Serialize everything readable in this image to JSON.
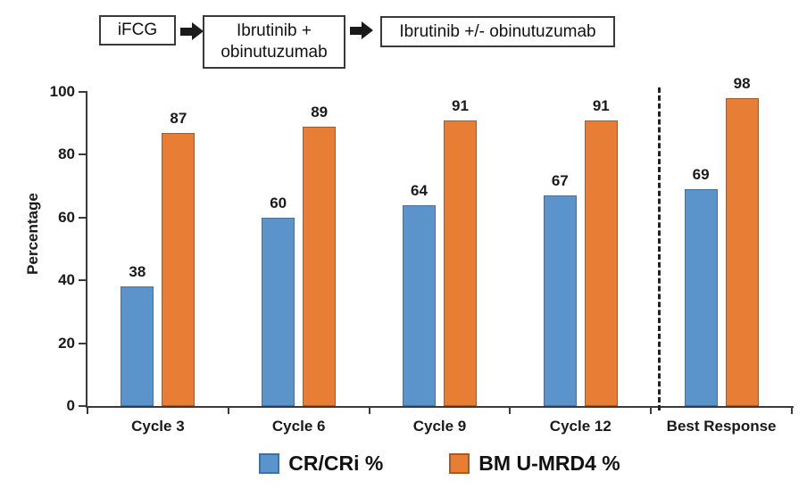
{
  "flow": {
    "steps": [
      {
        "label": "iFCG"
      },
      {
        "label": "Ibrutinib +\nobinutuzumab"
      },
      {
        "label": "Ibrutinib +/- obinutuzumab"
      }
    ],
    "arrow_color": "#1a1a1a"
  },
  "chart_data": {
    "type": "bar",
    "categories": [
      "Cycle 3",
      "Cycle 6",
      "Cycle 9",
      "Cycle 12",
      "Best Response"
    ],
    "series": [
      {
        "name": "CR/CRi %",
        "color": "#5b93cb",
        "border_color": "#41719c",
        "values": [
          38,
          60,
          64,
          67,
          69
        ]
      },
      {
        "name": "BM U-MRD4 %",
        "color": "#e87d35",
        "border_color": "#a85a20",
        "values": [
          87,
          89,
          91,
          91,
          98
        ]
      }
    ],
    "title": "",
    "xlabel": "",
    "ylabel": "Percentage",
    "ylim": [
      0,
      100
    ],
    "yticks": [
      0,
      20,
      40,
      60,
      80,
      100
    ],
    "grid": false,
    "legend_position": "bottom",
    "divider": {
      "before_index": 4,
      "style": "dashed",
      "color": "#222222"
    },
    "value_labels_shown": true
  }
}
